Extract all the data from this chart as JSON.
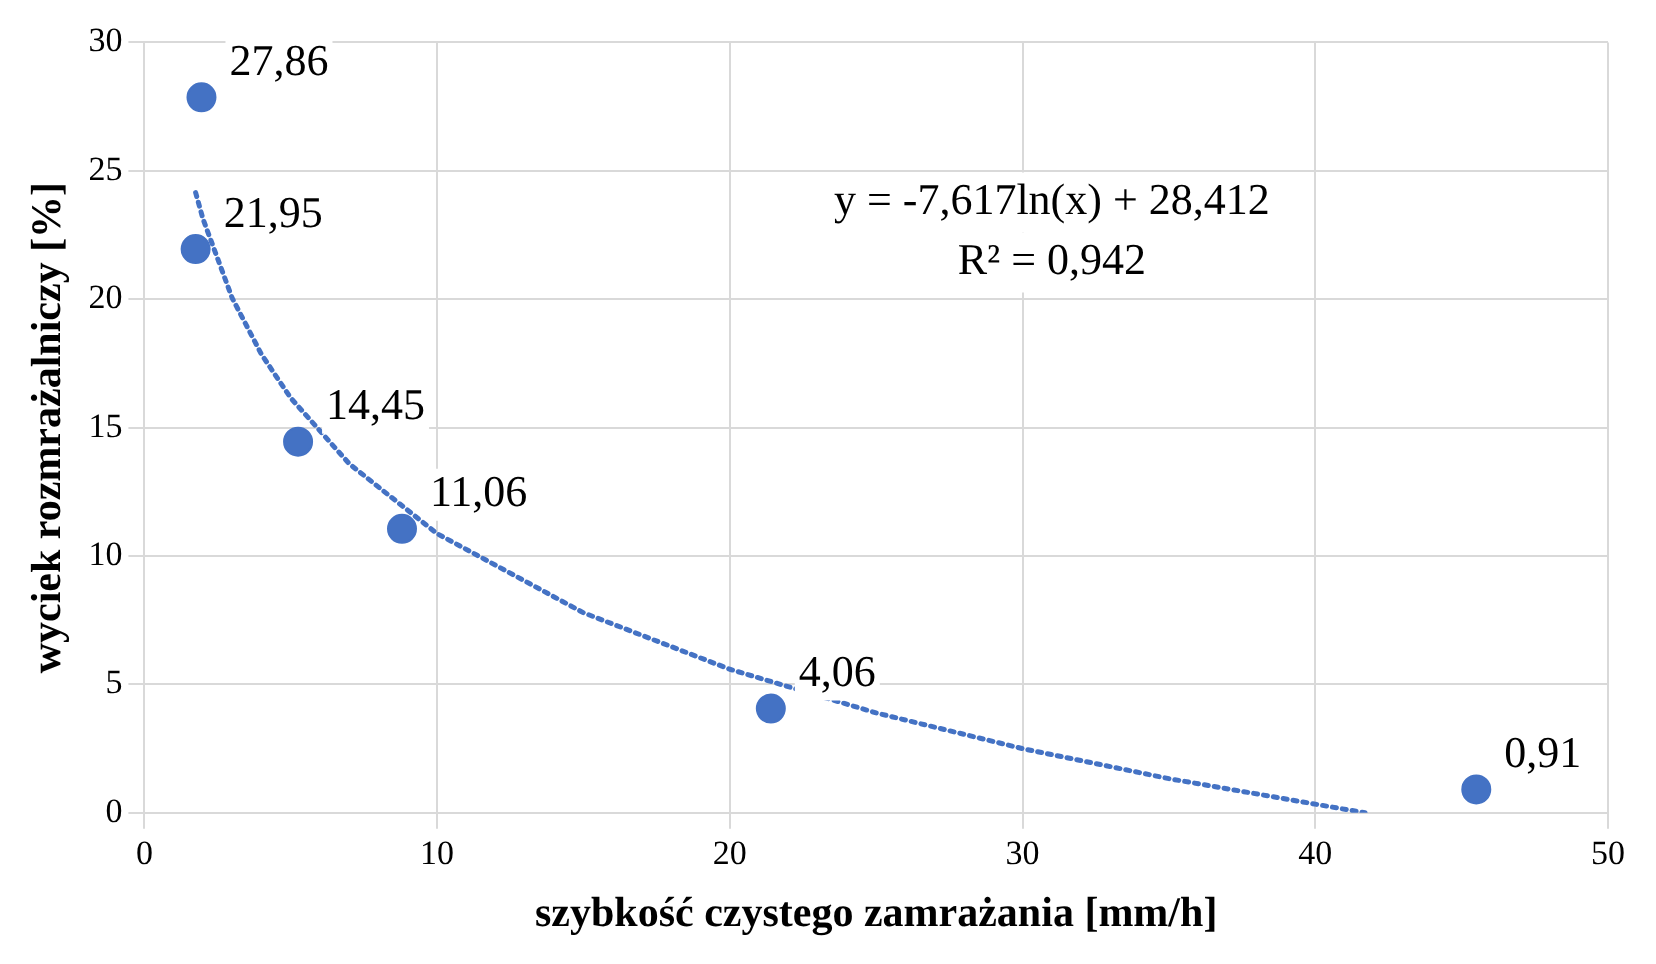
{
  "chart_data": {
    "type": "scatter",
    "xlabel": "szybkość czystego zamrażania [mm/h]",
    "ylabel": "wyciek rozmrażalniczy [%]",
    "xlim": [
      0,
      50
    ],
    "xticks": [
      0,
      10,
      20,
      30,
      40,
      50
    ],
    "ylim": [
      0,
      30
    ],
    "yticks": [
      0,
      5,
      10,
      15,
      20,
      25,
      30
    ],
    "grid": true,
    "legend": false,
    "annotations": [
      "y = -7,617ln(x) + 28,412",
      "R² = 0,942"
    ],
    "series": [
      {
        "type": "scatter",
        "color": "#4472c4",
        "marker": "circle",
        "x": [
          1.95,
          1.75,
          5.25,
          8.8,
          21.4,
          45.5
        ],
        "values": [
          27.86,
          21.95,
          14.45,
          11.06,
          4.06,
          0.91
        ],
        "value_labels": [
          "27,86",
          "21,95",
          "14,45",
          "11,06",
          "4,06",
          "0,91"
        ]
      },
      {
        "type": "line",
        "color": "#4472c4",
        "line_style": "dotted",
        "marker": "none",
        "x": [
          1.75,
          2,
          3,
          4,
          5,
          7,
          10,
          15,
          20,
          25,
          30,
          35,
          41.7
        ],
        "values": [
          24.15,
          23.13,
          20.04,
          17.85,
          16.15,
          13.59,
          10.87,
          7.79,
          5.59,
          3.89,
          2.5,
          1.33,
          0
        ]
      }
    ]
  }
}
